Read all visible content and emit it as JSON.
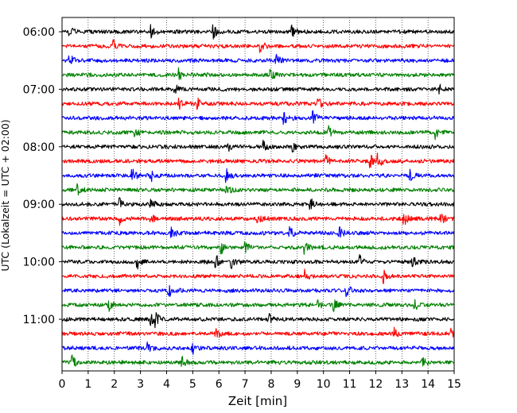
{
  "chart_data": {
    "type": "line",
    "title": "",
    "xlabel": "Zeit  [min]",
    "ylabel": "UTC (Lokalzeit = UTC + 02:00)",
    "xlim": [
      0,
      15
    ],
    "x_ticks": [
      "0",
      "1",
      "2",
      "3",
      "4",
      "5",
      "6",
      "7",
      "8",
      "9",
      "10",
      "11",
      "12",
      "13",
      "14",
      "15"
    ],
    "y_ticks": [
      "06:00",
      "07:00",
      "08:00",
      "09:00",
      "10:00",
      "11:00"
    ],
    "grid": "vertical dotted",
    "trace_interval_min": 15,
    "colors": [
      "#000000",
      "#ff0000",
      "#0000ff",
      "#008000"
    ],
    "series": [
      {
        "start": "06:00",
        "events": [
          0.3,
          3.4,
          5.8,
          8.8
        ]
      },
      {
        "start": "06:15",
        "events": [
          2.0,
          7.6
        ]
      },
      {
        "start": "06:30",
        "events": [
          0.3,
          8.2
        ]
      },
      {
        "start": "06:45",
        "events": [
          4.5,
          8.0
        ]
      },
      {
        "start": "07:00",
        "events": [
          4.3,
          14.4
        ]
      },
      {
        "start": "07:15",
        "events": [
          4.5,
          5.2,
          9.8
        ]
      },
      {
        "start": "07:30",
        "events": [
          8.5,
          9.6
        ]
      },
      {
        "start": "07:45",
        "events": [
          2.8,
          10.2,
          14.3
        ]
      },
      {
        "start": "08:00",
        "events": [
          6.3,
          7.7,
          8.8
        ]
      },
      {
        "start": "08:15",
        "events": [
          10.1,
          11.8,
          12.1
        ]
      },
      {
        "start": "08:30",
        "events": [
          2.7,
          3.4,
          6.3,
          13.3
        ]
      },
      {
        "start": "08:45",
        "events": [
          0.6,
          6.3
        ]
      },
      {
        "start": "09:00",
        "events": [
          2.2,
          3.4,
          9.5
        ]
      },
      {
        "start": "09:15",
        "events": [
          2.2,
          3.4,
          7.5,
          13.1,
          14.5
        ]
      },
      {
        "start": "09:30",
        "events": [
          4.2,
          8.7,
          10.6
        ]
      },
      {
        "start": "09:45",
        "events": [
          6.1,
          7.0,
          9.3
        ]
      },
      {
        "start": "10:00",
        "events": [
          2.9,
          5.9,
          6.5,
          11.4,
          13.4
        ]
      },
      {
        "start": "10:15",
        "events": [
          9.3,
          12.3
        ]
      },
      {
        "start": "10:30",
        "events": [
          4.1,
          10.9
        ]
      },
      {
        "start": "10:45",
        "events": [
          1.8,
          9.8,
          10.4,
          13.5
        ]
      },
      {
        "start": "11:00",
        "events": [
          3.4,
          3.6,
          7.9
        ]
      },
      {
        "start": "11:15",
        "events": [
          5.9,
          12.7,
          14.9
        ]
      },
      {
        "start": "11:30",
        "events": [
          3.3,
          5.0
        ]
      },
      {
        "start": "11:45",
        "events": [
          0.4,
          4.6,
          13.8
        ]
      }
    ]
  }
}
